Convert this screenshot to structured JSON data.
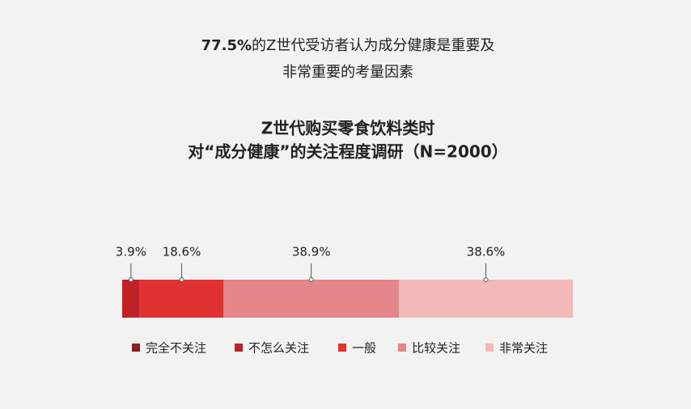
{
  "chart_data": {
    "type": "stacked-bar",
    "headline": {
      "bold": "77.5%",
      "lines": [
        "的Z世代受访者认为成分健康是重要及",
        "非常重要的考量因素"
      ]
    },
    "title": [
      "Z世代购买零食饮料类时",
      "对“成分健康”的关注程度调研（N=2000）"
    ],
    "series": [
      {
        "name": "完全不关注",
        "color": "#8b1d24",
        "values": [
          0
        ],
        "value_labels": [
          null
        ]
      },
      {
        "name": "不怎么关注",
        "color": "#c02026",
        "values": [
          3.9
        ],
        "value_labels": [
          "3.9%"
        ]
      },
      {
        "name": "一般",
        "color": "#e03232",
        "values": [
          18.6
        ],
        "value_labels": [
          "18.6%"
        ]
      },
      {
        "name": "比较关注",
        "color": "#e4868a",
        "values": [
          38.9
        ],
        "value_labels": [
          "38.9%"
        ]
      },
      {
        "name": "非常关注",
        "color": "#f3b9b9",
        "values": [
          38.6
        ],
        "value_labels": [
          "38.6%"
        ]
      }
    ]
  }
}
